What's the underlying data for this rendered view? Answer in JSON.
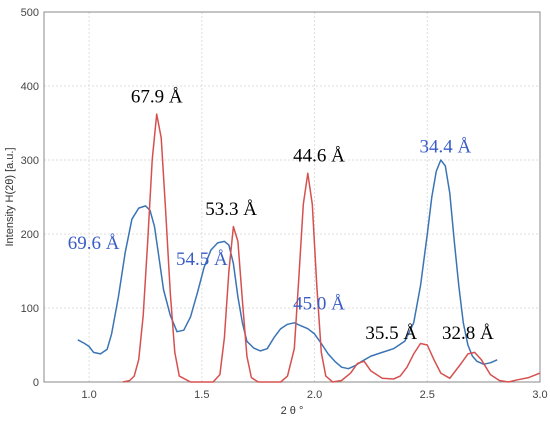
{
  "chart_data": {
    "type": "line",
    "title": "",
    "xlabel": "2 θ °",
    "ylabel": "Intensity  H(2θ) [a.u.]",
    "xlim": [
      0.8,
      3.0
    ],
    "ylim": [
      0,
      500
    ],
    "xticks": [
      "1.0",
      "1.5",
      "2.0",
      "2.5",
      "3.0"
    ],
    "yticks": [
      "0",
      "100",
      "200",
      "300",
      "400",
      "500"
    ],
    "grid": true,
    "legend": "none",
    "series": [
      {
        "color": "#3a74b5",
        "x": [
          0.95,
          0.98,
          1.0,
          1.02,
          1.05,
          1.08,
          1.1,
          1.13,
          1.16,
          1.19,
          1.22,
          1.25,
          1.27,
          1.29,
          1.31,
          1.33,
          1.36,
          1.39,
          1.42,
          1.45,
          1.48,
          1.51,
          1.54,
          1.57,
          1.6,
          1.62,
          1.64,
          1.66,
          1.68,
          1.7,
          1.73,
          1.76,
          1.79,
          1.82,
          1.85,
          1.88,
          1.91,
          1.94,
          1.97,
          2.0,
          2.03,
          2.06,
          2.09,
          2.12,
          2.15,
          2.18,
          2.21,
          2.25,
          2.3,
          2.35,
          2.4,
          2.44,
          2.47,
          2.5,
          2.52,
          2.54,
          2.56,
          2.58,
          2.6,
          2.62,
          2.64,
          2.66,
          2.68,
          2.7,
          2.72,
          2.75,
          2.78,
          2.81
        ],
        "y": [
          57,
          52,
          48,
          40,
          38,
          44,
          65,
          115,
          175,
          220,
          235,
          238,
          232,
          210,
          168,
          125,
          90,
          68,
          70,
          88,
          120,
          155,
          178,
          188,
          190,
          185,
          160,
          115,
          80,
          55,
          46,
          42,
          45,
          60,
          72,
          78,
          80,
          76,
          72,
          65,
          52,
          38,
          28,
          20,
          18,
          22,
          28,
          35,
          40,
          45,
          55,
          80,
          130,
          200,
          250,
          285,
          300,
          292,
          255,
          190,
          130,
          80,
          50,
          35,
          28,
          24,
          26,
          30
        ]
      },
      {
        "color": "#d6504f",
        "x": [
          1.15,
          1.18,
          1.2,
          1.22,
          1.24,
          1.26,
          1.28,
          1.3,
          1.32,
          1.34,
          1.36,
          1.38,
          1.4,
          1.45,
          1.5,
          1.55,
          1.58,
          1.6,
          1.62,
          1.64,
          1.66,
          1.68,
          1.7,
          1.72,
          1.75,
          1.8,
          1.85,
          1.88,
          1.91,
          1.93,
          1.95,
          1.97,
          1.99,
          2.01,
          2.03,
          2.05,
          2.08,
          2.12,
          2.16,
          2.19,
          2.22,
          2.25,
          2.3,
          2.35,
          2.38,
          2.41,
          2.44,
          2.47,
          2.5,
          2.53,
          2.56,
          2.6,
          2.65,
          2.68,
          2.71,
          2.74,
          2.78,
          2.82,
          2.86,
          2.9,
          2.95,
          3.0
        ],
        "y": [
          0,
          2,
          8,
          30,
          90,
          190,
          300,
          362,
          330,
          230,
          120,
          40,
          8,
          0,
          0,
          0,
          10,
          60,
          150,
          210,
          190,
          110,
          35,
          6,
          0,
          0,
          0,
          8,
          45,
          140,
          240,
          282,
          240,
          130,
          40,
          8,
          0,
          2,
          12,
          25,
          28,
          15,
          5,
          4,
          8,
          20,
          38,
          52,
          50,
          30,
          12,
          5,
          25,
          38,
          40,
          30,
          10,
          2,
          0,
          3,
          6,
          12
        ]
      }
    ],
    "annotations": [
      {
        "text": "67.9 Å",
        "x": 1.3,
        "y": 378,
        "color": "#000000"
      },
      {
        "text": "53.3 Å",
        "x": 1.63,
        "y": 226,
        "color": "#000000"
      },
      {
        "text": "44.6 Å",
        "x": 2.02,
        "y": 298,
        "color": "#000000"
      },
      {
        "text": "34.4 Å",
        "x": 2.58,
        "y": 310,
        "color": "#3a5cc5"
      },
      {
        "text": "69.6 Å",
        "x": 1.02,
        "y": 180,
        "color": "#3a5cc5"
      },
      {
        "text": "54.5 Å",
        "x": 1.5,
        "y": 158,
        "color": "#3a5cc5"
      },
      {
        "text": "45.0 Å",
        "x": 2.02,
        "y": 98,
        "color": "#3a5cc5"
      },
      {
        "text": "35.5 Å",
        "x": 2.34,
        "y": 58,
        "color": "#000000"
      },
      {
        "text": "32.8 Å",
        "x": 2.68,
        "y": 58,
        "color": "#000000"
      }
    ]
  }
}
